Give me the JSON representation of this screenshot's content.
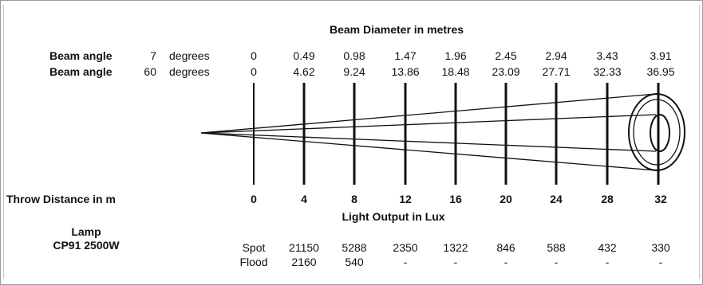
{
  "header": {
    "title": "Beam Diameter in metres"
  },
  "beam_rows": [
    {
      "label": "Beam angle",
      "angle": "7",
      "unit": "degrees",
      "values": [
        "0",
        "0.49",
        "0.98",
        "1.47",
        "1.96",
        "2.45",
        "2.94",
        "3.43",
        "3.91"
      ]
    },
    {
      "label": "Beam angle",
      "angle": "60",
      "unit": "degrees",
      "values": [
        "0",
        "4.62",
        "9.24",
        "13.86",
        "18.48",
        "23.09",
        "27.71",
        "32.33",
        "36.95"
      ]
    }
  ],
  "throw": {
    "label": "Throw Distance in m",
    "distances": [
      "0",
      "4",
      "8",
      "12",
      "16",
      "20",
      "24",
      "28",
      "32"
    ]
  },
  "lux": {
    "title": "Light Output in Lux"
  },
  "lamp": {
    "label": "Lamp",
    "model": "CP91 2500W"
  },
  "output_rows": [
    {
      "mode": "Spot",
      "values": [
        "",
        "21150",
        "5288",
        "2350",
        "1322",
        "846",
        "588",
        "432",
        "330"
      ]
    },
    {
      "mode": "Flood",
      "values": [
        "",
        "2160",
        "540",
        "-",
        "-",
        "-",
        "-",
        "-",
        "-"
      ]
    }
  ],
  "colors": {
    "line": "#111111",
    "border": "#9a9a9a"
  }
}
